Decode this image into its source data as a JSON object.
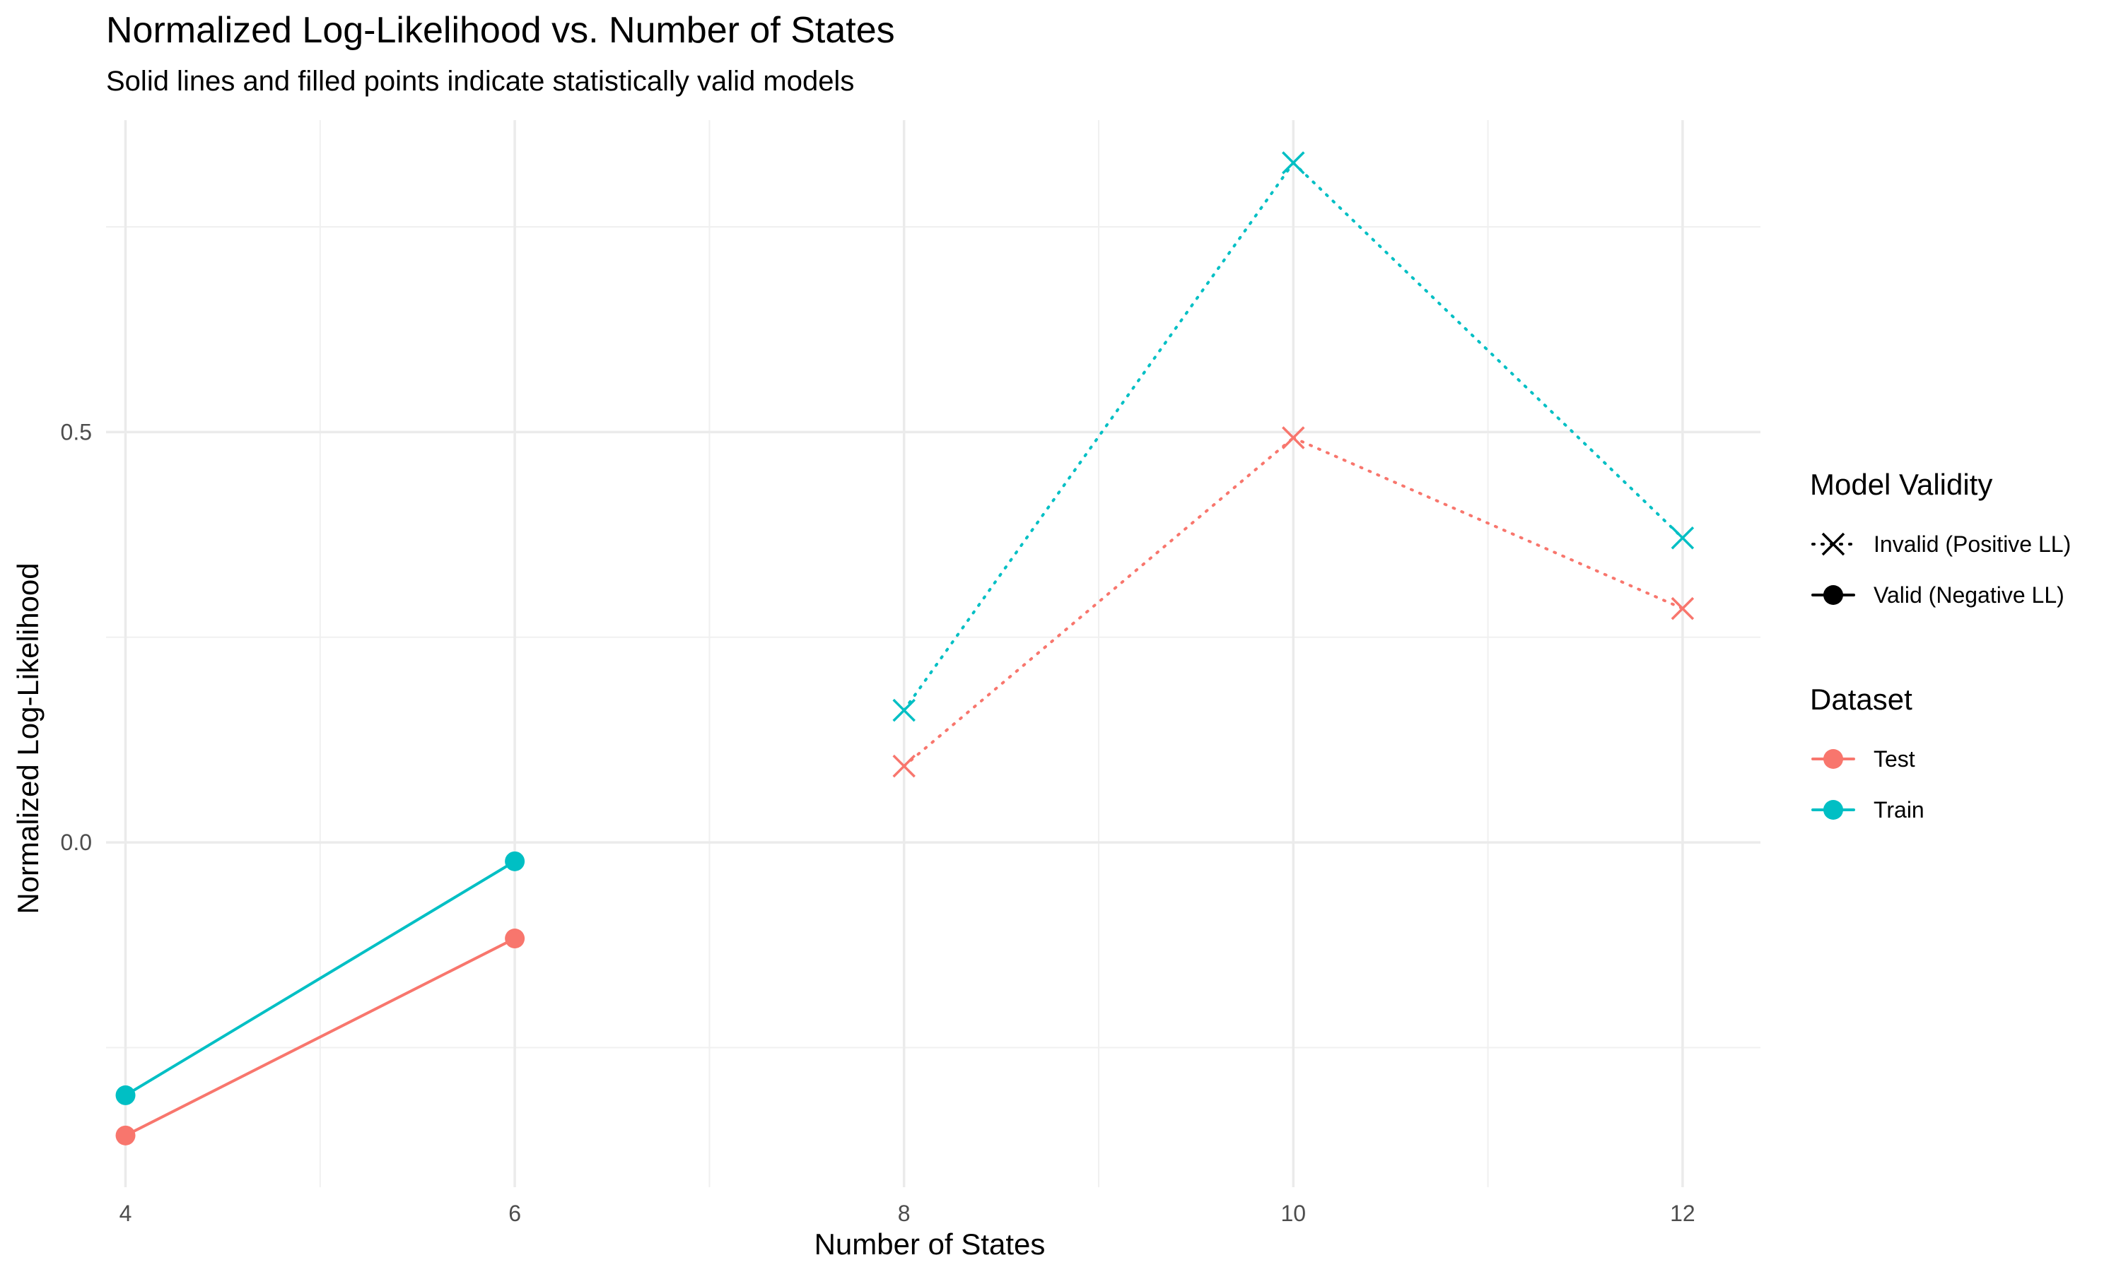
{
  "chart_data": {
    "type": "line",
    "title": "Normalized Log-Likelihood vs. Number of States",
    "subtitle": "Solid lines and filled points indicate statistically valid models",
    "xlabel": "Number of States",
    "ylabel": "Normalized Log-Likelihood",
    "xlim": [
      3.9,
      12.4
    ],
    "ylim": [
      -0.42,
      0.88
    ],
    "x_ticks": [
      4,
      6,
      8,
      10,
      12
    ],
    "x_tick_labels": [
      "4",
      "6",
      "8",
      "10",
      "12"
    ],
    "x_minor_ticks": [
      5,
      7,
      9,
      11
    ],
    "y_ticks": [
      0.0,
      0.5
    ],
    "y_tick_labels": [
      "0.0",
      "0.5"
    ],
    "y_minor_ticks": [
      -0.25,
      0.25,
      0.75
    ],
    "grid": true,
    "legend_position": "right",
    "series": [
      {
        "name": "Test",
        "color": "#F8766D",
        "points": [
          {
            "x": 4,
            "y": -0.357,
            "valid": true
          },
          {
            "x": 6,
            "y": -0.117,
            "valid": true
          },
          {
            "x": 8,
            "y": 0.093,
            "valid": false
          },
          {
            "x": 10,
            "y": 0.493,
            "valid": false
          },
          {
            "x": 12,
            "y": 0.285,
            "valid": false
          }
        ]
      },
      {
        "name": "Train",
        "color": "#00BFC4",
        "points": [
          {
            "x": 4,
            "y": -0.308,
            "valid": true
          },
          {
            "x": 6,
            "y": -0.023,
            "valid": true
          },
          {
            "x": 8,
            "y": 0.161,
            "valid": false
          },
          {
            "x": 10,
            "y": 0.828,
            "valid": false
          },
          {
            "x": 12,
            "y": 0.371,
            "valid": false
          }
        ]
      }
    ],
    "legends": [
      {
        "title": "Model Validity",
        "entries": [
          {
            "label": "Invalid (Positive LL)",
            "marker": "cross",
            "line": "dotted",
            "color": "#000000"
          },
          {
            "label": "Valid (Negative LL)",
            "marker": "circle",
            "line": "solid",
            "color": "#000000"
          }
        ]
      },
      {
        "title": "Dataset",
        "entries": [
          {
            "label": "Test",
            "marker": "circle",
            "line": "solid",
            "color": "#F8766D"
          },
          {
            "label": "Train",
            "marker": "circle",
            "line": "solid",
            "color": "#00BFC4"
          }
        ]
      }
    ]
  }
}
